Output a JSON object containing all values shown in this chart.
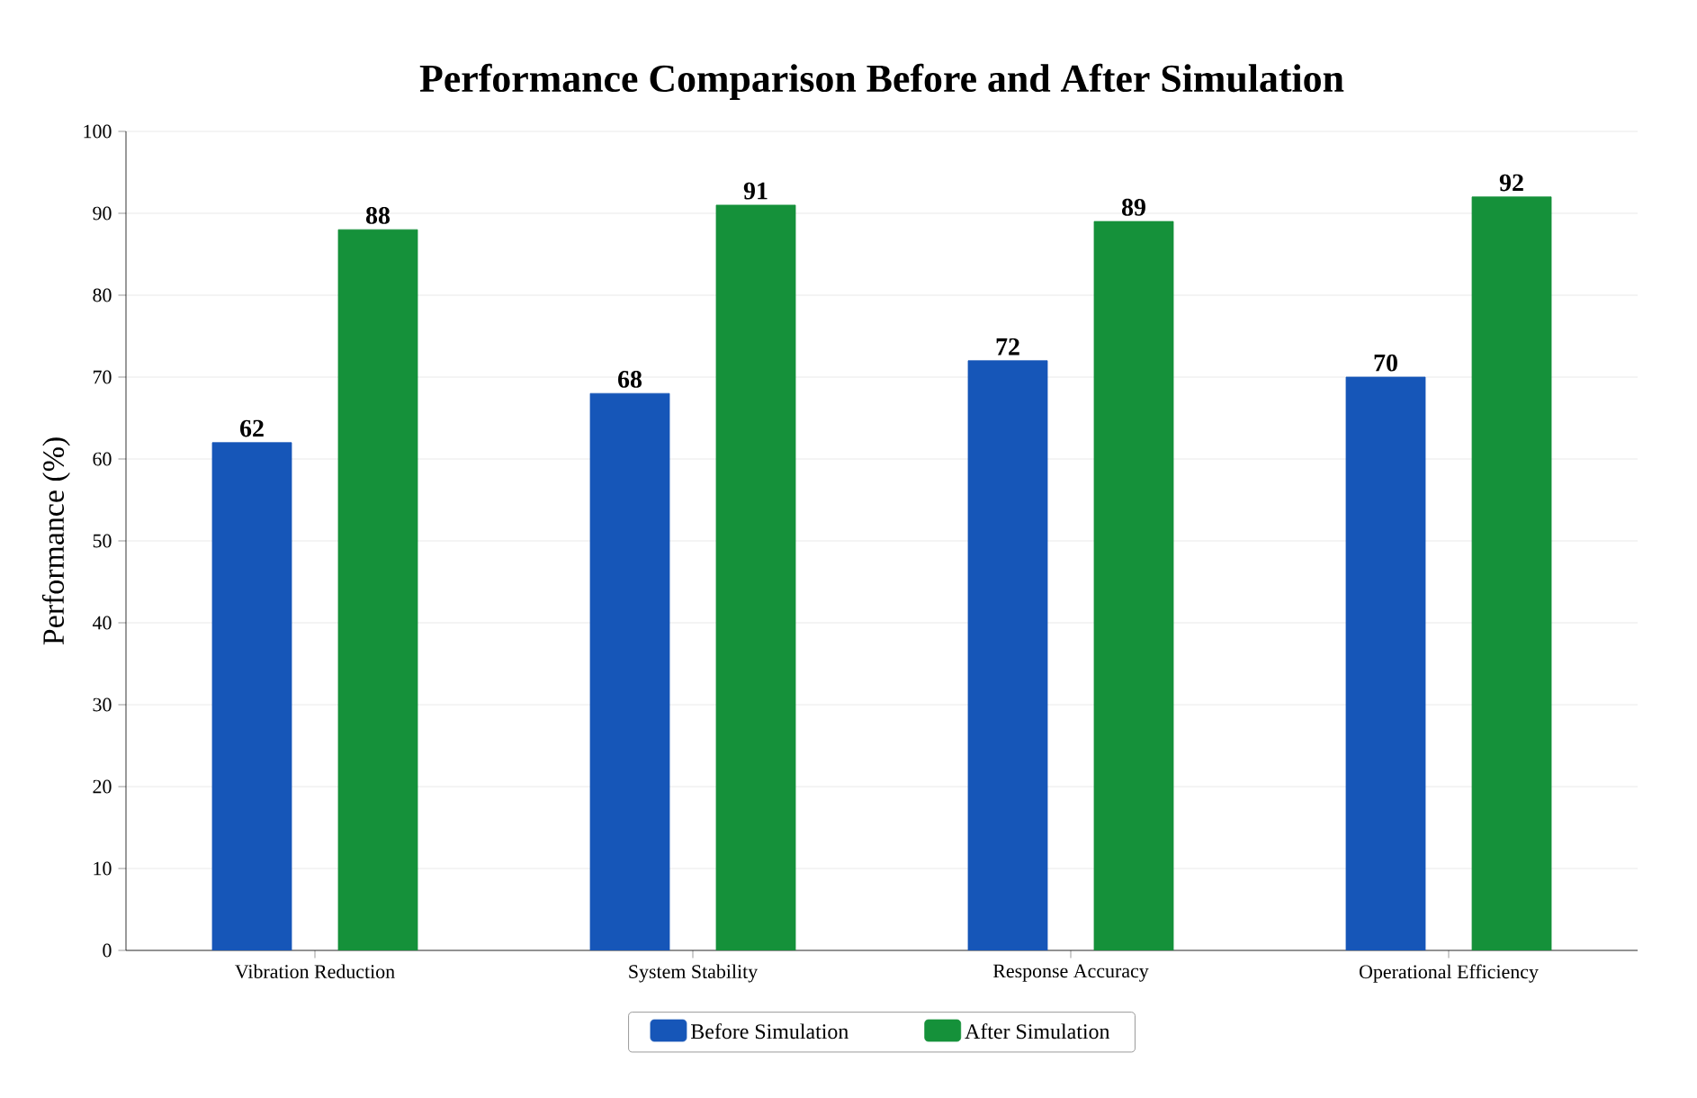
{
  "chart_data": {
    "type": "bar",
    "title": "Performance Comparison Before and After Simulation",
    "ylabel": "Performance (%)",
    "categories": [
      "Vibration Reduction",
      "System Stability",
      "Response Accuracy",
      "Operational Efficiency"
    ],
    "series": [
      {
        "name": "Before Simulation",
        "color": "#1656b8",
        "values": [
          62,
          68,
          72,
          70
        ]
      },
      {
        "name": "After Simulation",
        "color": "#15913a",
        "values": [
          88,
          91,
          89,
          92
        ]
      }
    ],
    "ylim": [
      0,
      100
    ],
    "yticks": [
      0,
      10,
      20,
      30,
      40,
      50,
      60,
      70,
      80,
      90,
      100
    ],
    "grid": "y",
    "legend": "bottom",
    "data_labels": true
  }
}
